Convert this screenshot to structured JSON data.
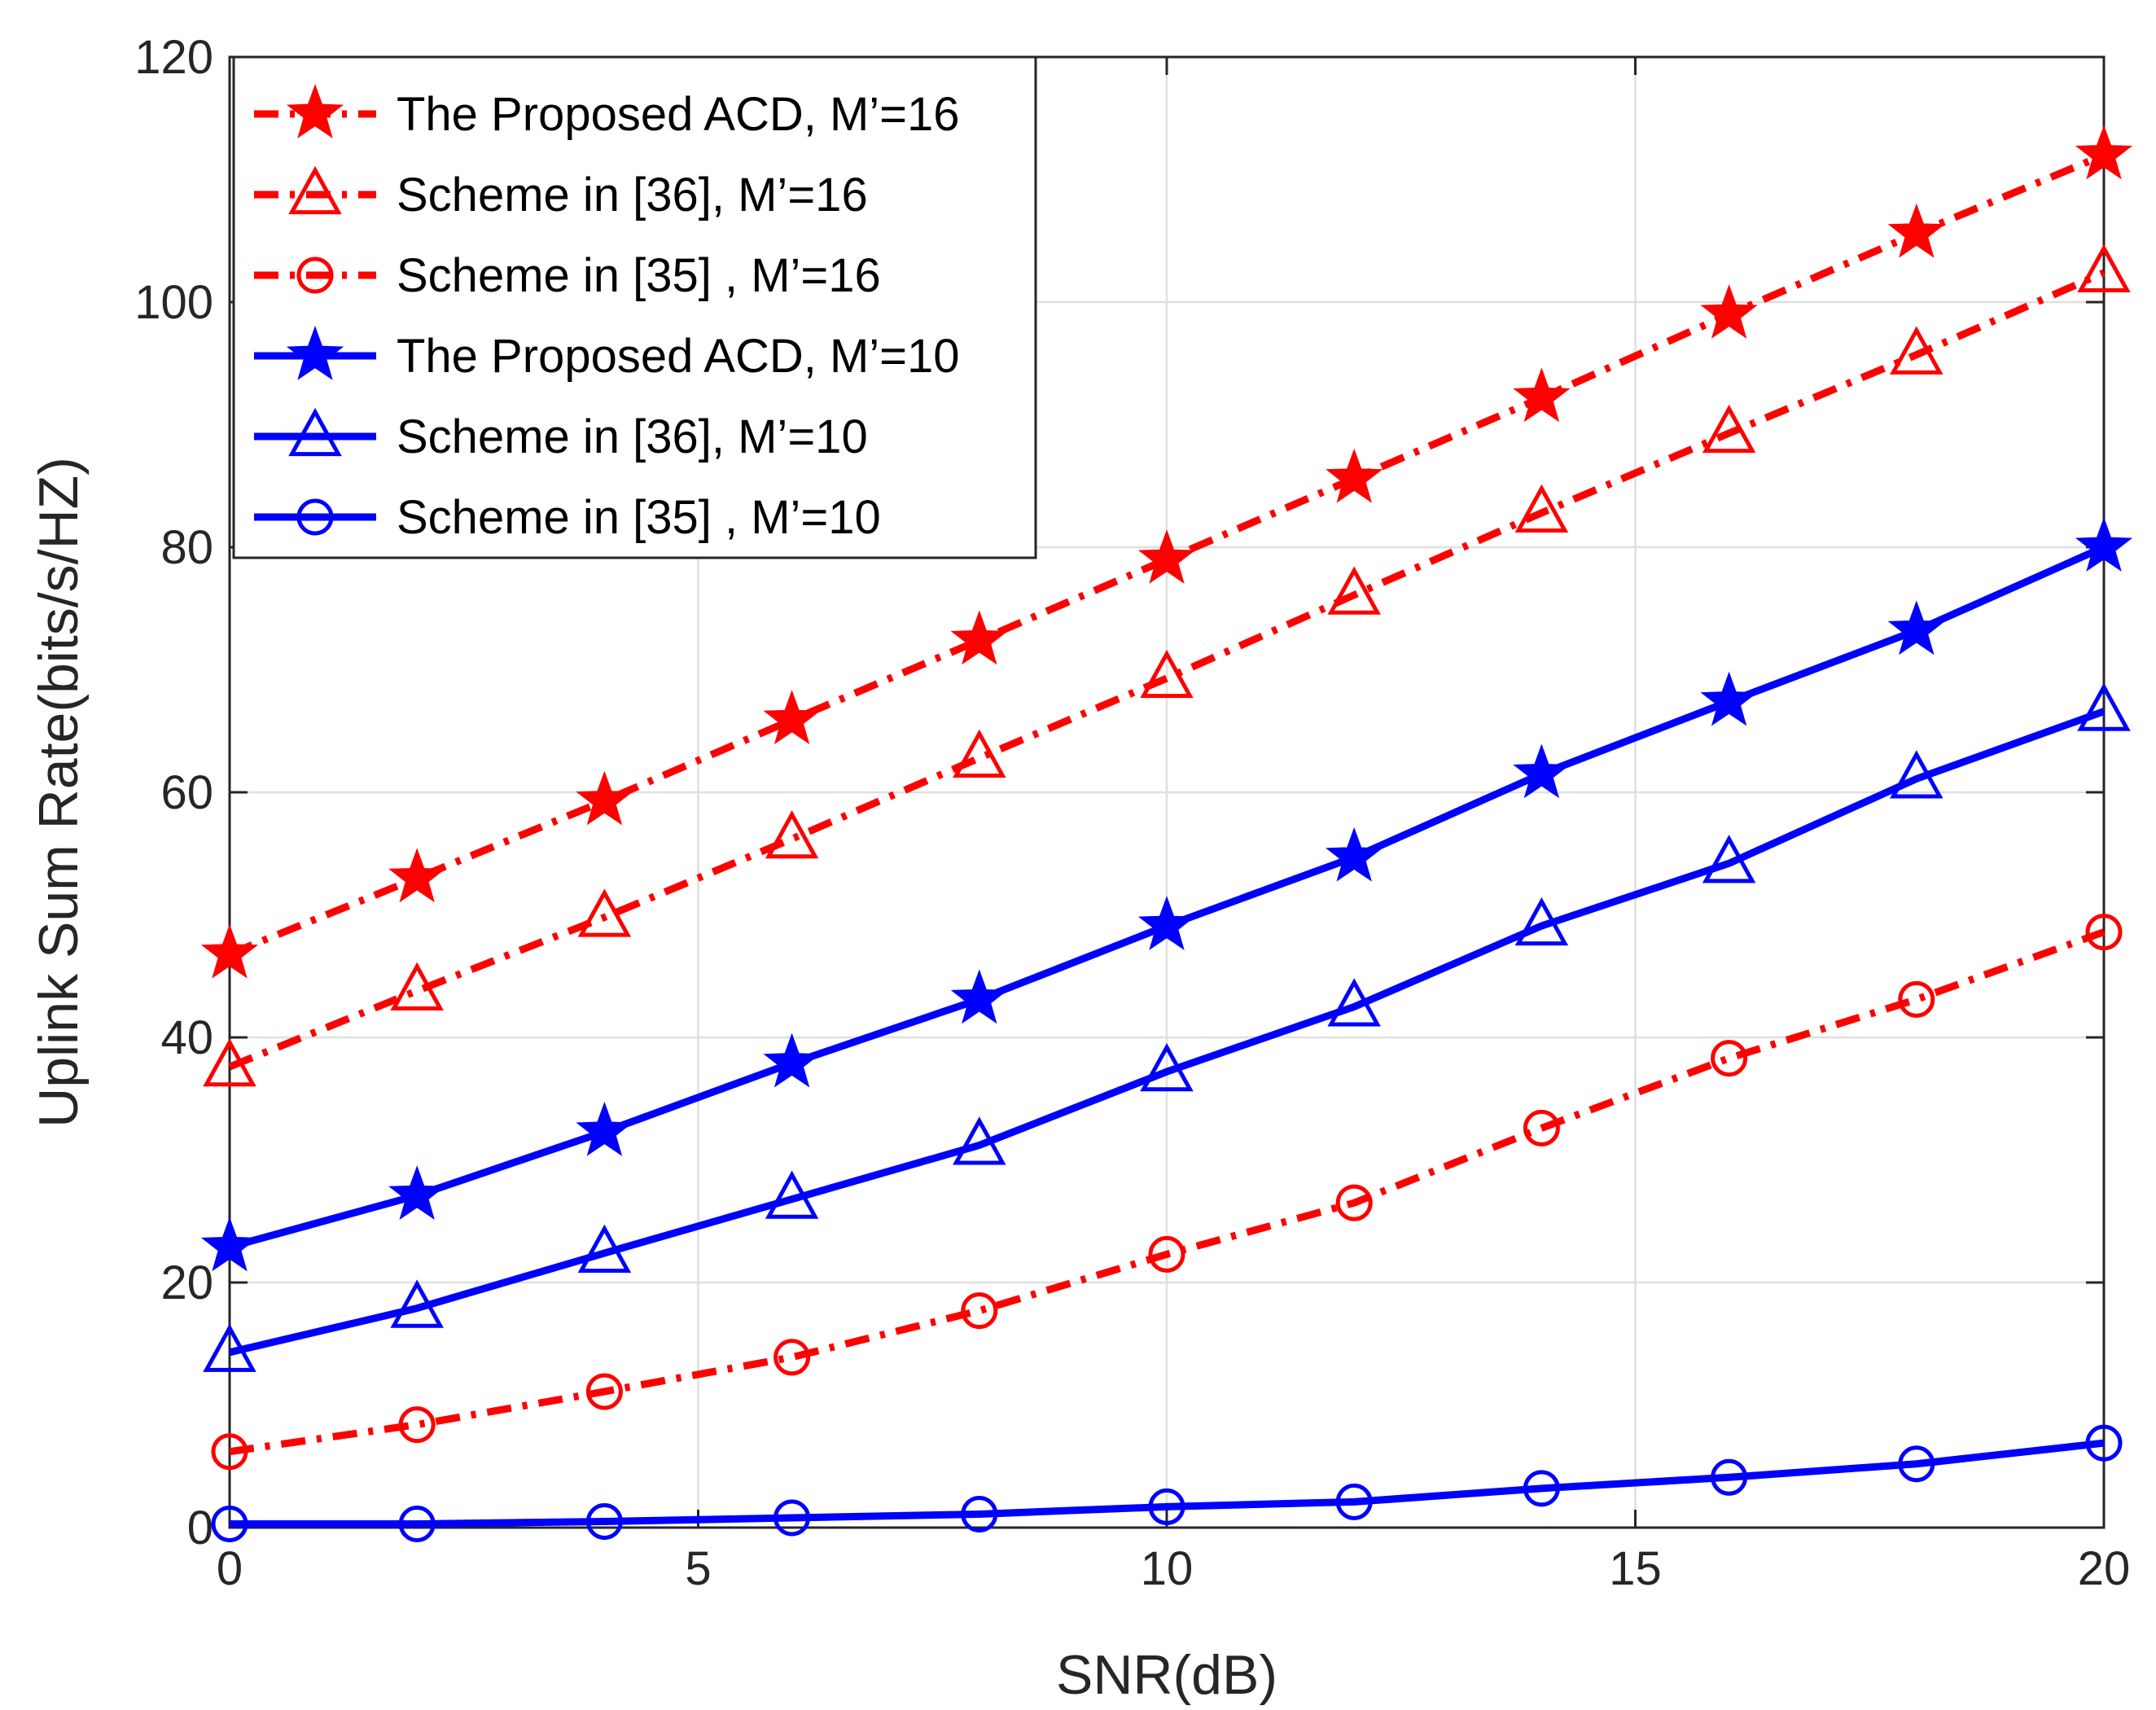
{
  "chart_data": {
    "type": "line",
    "xlabel": "SNR(dB)",
    "ylabel": "Uplink Sum Rate(bits/s/HZ)",
    "xlim": [
      0,
      20
    ],
    "ylim": [
      0,
      120
    ],
    "xticks": [
      0,
      5,
      10,
      15,
      20
    ],
    "yticks": [
      0,
      20,
      40,
      60,
      80,
      100,
      120
    ],
    "grid": true,
    "legend_position": "top-left",
    "x": [
      0,
      2,
      4,
      6,
      8,
      10,
      12,
      14,
      16,
      18,
      20
    ],
    "series": [
      {
        "name": "The Proposed ACD, M’=16",
        "color": "#ff0000",
        "line_style": "dash-dot",
        "marker": "star",
        "values": [
          46.8,
          53.0,
          59.3,
          65.9,
          72.4,
          79.0,
          85.6,
          92.2,
          99.0,
          105.6,
          112.0
        ]
      },
      {
        "name": "Scheme in [36], M’=16",
        "color": "#ff0000",
        "line_style": "dash-dot",
        "marker": "triangle",
        "values": [
          37.6,
          43.8,
          49.8,
          56.2,
          62.8,
          69.3,
          76.1,
          82.8,
          89.3,
          95.7,
          102.4
        ]
      },
      {
        "name": "Scheme in [35] , M’=16",
        "color": "#ff0000",
        "line_style": "dash-dot",
        "marker": "circle",
        "values": [
          6.2,
          8.4,
          11.1,
          13.9,
          17.7,
          22.3,
          26.5,
          32.6,
          38.3,
          43.1,
          48.6
        ]
      },
      {
        "name": "The Proposed ACD, M’=10",
        "color": "#0000ff",
        "line_style": "solid",
        "marker": "star",
        "values": [
          22.9,
          27.1,
          32.3,
          37.9,
          43.1,
          49.1,
          54.7,
          61.5,
          67.4,
          73.2,
          80.0
        ]
      },
      {
        "name": "Scheme in [36], M’=10",
        "color": "#0000ff",
        "line_style": "solid",
        "marker": "triangle",
        "values": [
          14.3,
          17.9,
          22.4,
          26.8,
          31.2,
          37.2,
          42.5,
          49.1,
          54.2,
          61.1,
          66.6
        ]
      },
      {
        "name": "Scheme in [35] , M’=10",
        "color": "#0000ff",
        "line_style": "solid",
        "marker": "circle",
        "values": [
          0.3,
          0.3,
          0.5,
          0.8,
          1.1,
          1.7,
          2.1,
          3.2,
          4.1,
          5.2,
          6.9
        ]
      }
    ]
  }
}
